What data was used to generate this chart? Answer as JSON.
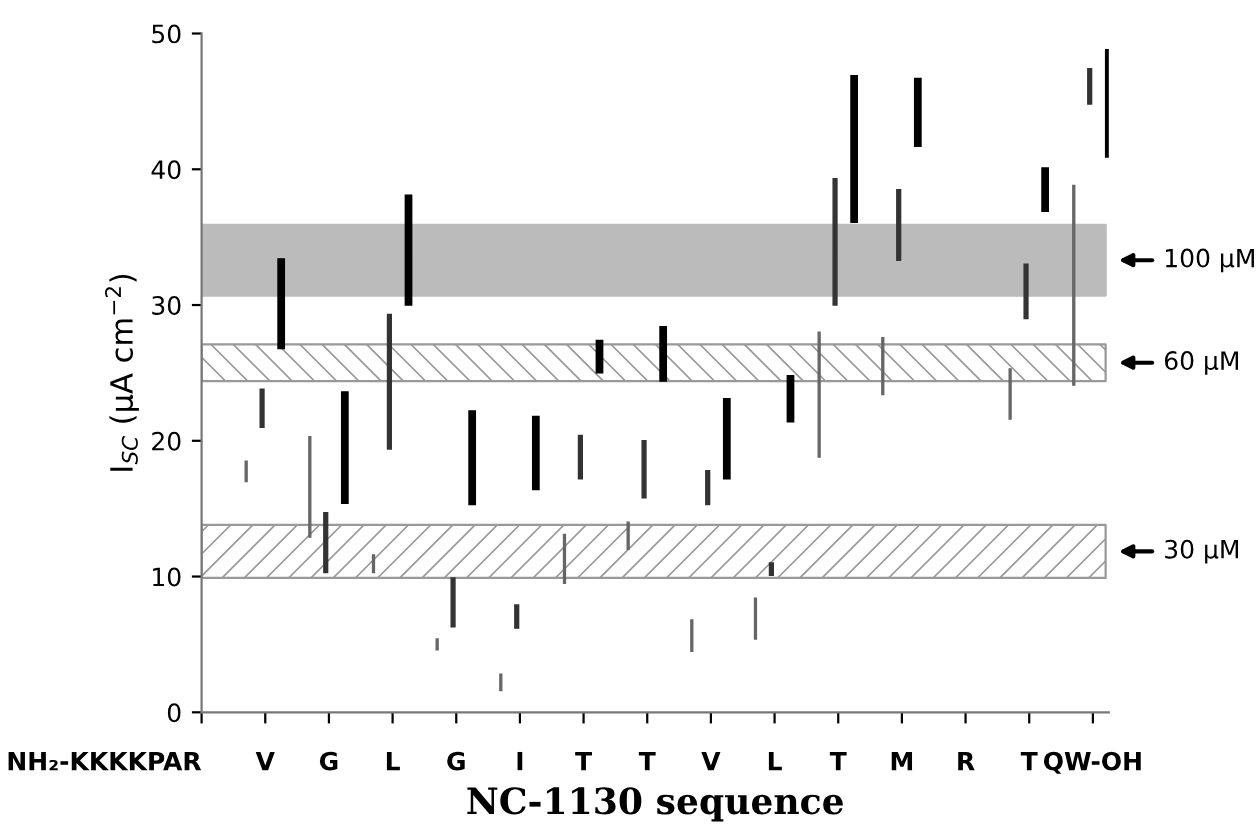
{
  "chart_data": {
    "type": "bar",
    "xlabel": "NC-1130 sequence",
    "ylabel": "I$_{SC}$ (μA cm$^{−2}$)",
    "categories": [
      "NH₂-KKKKPAR",
      "V",
      "G",
      "L",
      "G",
      "I",
      "T",
      "T",
      "V",
      "L",
      "T",
      "M",
      "R",
      "T",
      "QW-OH"
    ],
    "series": [
      {
        "color": "#666666",
        "base": [
          null,
          17.0,
          12.9,
          10.3,
          4.6,
          1.6,
          9.5,
          12.0,
          4.5,
          5.4,
          18.8,
          23.4,
          null,
          21.6,
          24.1
        ],
        "values": [
          null,
          1.5,
          7.4,
          1.3,
          0.8,
          1.2,
          3.6,
          2.0,
          2.3,
          3.0,
          9.2,
          4.2,
          null,
          3.7,
          14.7
        ]
      },
      {
        "color": "#333333",
        "base": [
          null,
          21.0,
          10.3,
          19.4,
          6.3,
          6.2,
          17.2,
          15.8,
          15.3,
          10.1,
          30.0,
          33.3,
          null,
          29.0,
          44.8
        ],
        "values": [
          null,
          2.8,
          4.4,
          9.9,
          3.6,
          1.7,
          3.2,
          4.2,
          2.5,
          0.9,
          9.3,
          5.2,
          null,
          4.0,
          2.6
        ]
      },
      {
        "color": "#000000",
        "base": [
          null,
          26.8,
          15.4,
          30.0,
          15.3,
          16.4,
          25.0,
          24.4,
          17.2,
          21.4,
          36.1,
          41.7,
          null,
          36.9,
          40.9
        ],
        "values": [
          null,
          6.6,
          8.2,
          8.1,
          6.9,
          5.4,
          2.4,
          4.0,
          5.9,
          3.4,
          10.8,
          5.0,
          null,
          3.2,
          7.9
        ]
      }
    ],
    "ylim": [
      0,
      50
    ],
    "yticks": [
      0,
      10,
      20,
      30,
      40,
      50
    ],
    "bands": [
      {
        "axis": "y",
        "from": 30.7,
        "to": 35.9,
        "label": "100 µM",
        "color": "#bbbbbb"
      },
      {
        "axis": "y",
        "from": 24.4,
        "to": 27.1,
        "label": "60 µM",
        "color": "#999999"
      },
      {
        "axis": "y",
        "from": 9.9,
        "to": 13.8,
        "label": "30 µM",
        "color": "#999999"
      }
    ],
    "grid": false,
    "legend": false
  }
}
